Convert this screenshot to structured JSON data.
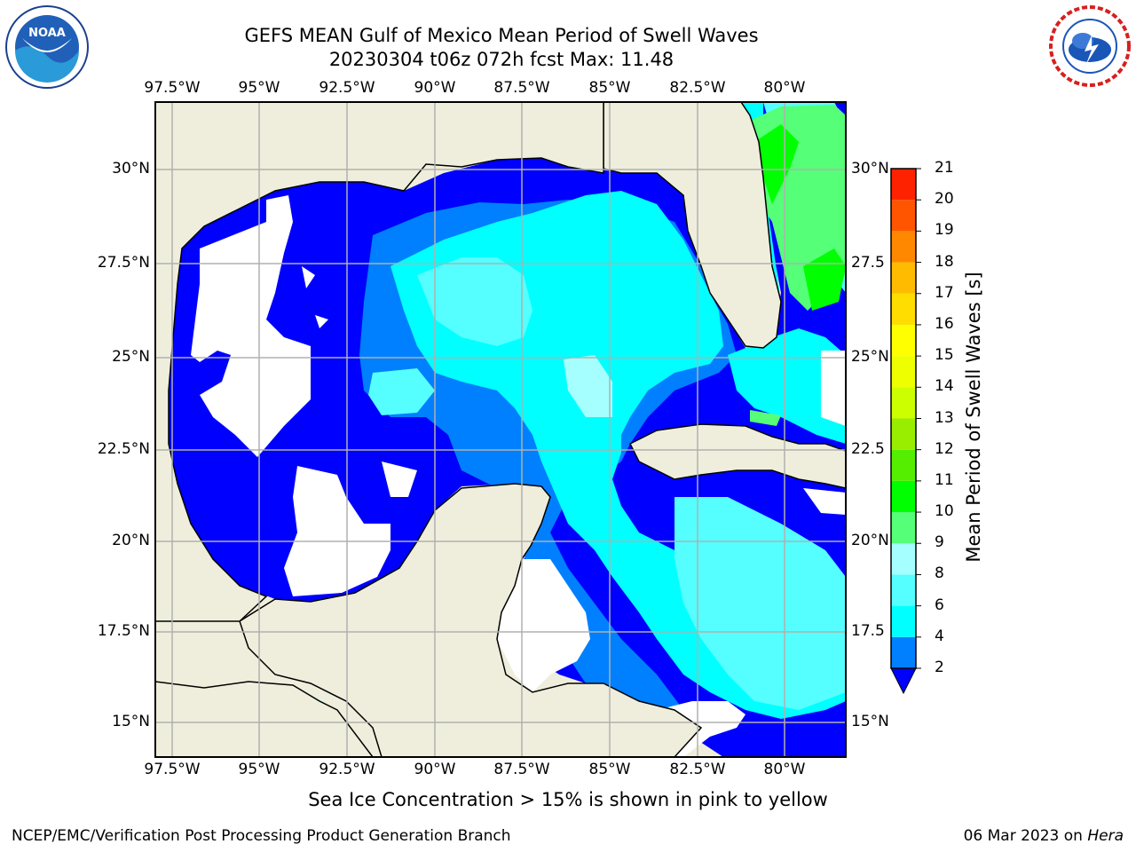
{
  "header": {
    "title_line1": "GEFS MEAN Gulf of Mexico Mean Period of Swell Waves",
    "title_line2": "20230304 t06z 072h fcst   Max: 11.48"
  },
  "axes": {
    "lon_labels": [
      "97.5°W",
      "95°W",
      "92.5°W",
      "90°W",
      "87.5°W",
      "85°W",
      "82.5°W",
      "80°W"
    ],
    "lat_labels_left": [
      "30°N",
      "27.5°N",
      "25°N",
      "22.5°N",
      "20°N",
      "17.5°N",
      "15°N"
    ],
    "lat_labels_right": [
      "30°N",
      "27.5",
      "25°N",
      "22.5",
      "20°N",
      "17.5",
      "15°N"
    ]
  },
  "colorbar": {
    "title": "Mean Period of Swell Waves [s]",
    "ticks": [
      "2",
      "4",
      "6",
      "8",
      "9",
      "10",
      "11",
      "12",
      "13",
      "14",
      "15",
      "16",
      "17",
      "18",
      "19",
      "20",
      "21"
    ],
    "colors": [
      "#0000ff",
      "#0080ff",
      "#00ffff",
      "#55ffff",
      "#a6ffff",
      "#55ff77",
      "#00ff00",
      "#55ee00",
      "#99ee00",
      "#ccff00",
      "#eeff00",
      "#ffff00",
      "#ffdd00",
      "#ffbb00",
      "#ff8800",
      "#ff5500",
      "#ff2200",
      "#ff0000"
    ]
  },
  "map_colors": {
    "land": "#efeedc",
    "no_data": "#ffffff",
    "grid": "#b0b0b0"
  },
  "logos": {
    "left": "noaa-logo",
    "right": "nws-logo"
  },
  "footer": {
    "note": "Sea Ice Concentration > 15% is shown in pink to yellow",
    "org": "NCEP/EMC/Verification Post Processing Product Generation Branch",
    "date": "06 Mar 2023 on ",
    "machine": "Hera"
  }
}
